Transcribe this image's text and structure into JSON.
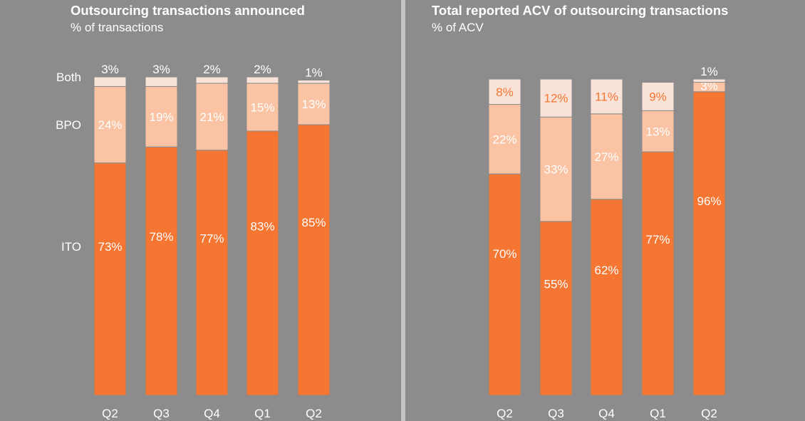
{
  "charts": [
    {
      "title": "Outsourcing transactions announced",
      "subtitle": "% of transactions"
    },
    {
      "title": "Total reported ACV of outsourcing transactions",
      "subtitle": "% of ACV"
    }
  ],
  "colors": {
    "background": "#8c8c8c",
    "ITO": "#f47632",
    "BPO": "#f9c3a4",
    "Both": "#f9e3d8",
    "label_light": "#ffffff",
    "label_orange": "#f47632",
    "bar_stroke": "#8a8a8a"
  },
  "chart_data": [
    {
      "type": "bar",
      "stacked": true,
      "title": "Outsourcing transactions announced",
      "subtitle": "% of transactions",
      "categories": [
        "Q2",
        "Q3",
        "Q4",
        "Q1",
        "Q2"
      ],
      "series": [
        {
          "name": "ITO",
          "values": [
            73,
            78,
            77,
            83,
            85
          ]
        },
        {
          "name": "BPO",
          "values": [
            24,
            19,
            21,
            15,
            13
          ]
        },
        {
          "name": "Both",
          "values": [
            3,
            3,
            2,
            2,
            1
          ]
        }
      ],
      "series_labels_shown": true,
      "ylim": [
        0,
        100
      ]
    },
    {
      "type": "bar",
      "stacked": true,
      "title": "Total reported ACV of outsourcing transactions",
      "subtitle": "% of ACV",
      "categories": [
        "Q2",
        "Q3",
        "Q4",
        "Q1",
        "Q2"
      ],
      "series": [
        {
          "name": "ITO",
          "values": [
            70,
            55,
            62,
            77,
            96
          ]
        },
        {
          "name": "BPO",
          "values": [
            22,
            33,
            27,
            13,
            3
          ]
        },
        {
          "name": "Both",
          "values": [
            8,
            12,
            11,
            9,
            1
          ]
        }
      ],
      "series_labels_shown": false,
      "ylim": [
        0,
        100
      ]
    }
  ]
}
